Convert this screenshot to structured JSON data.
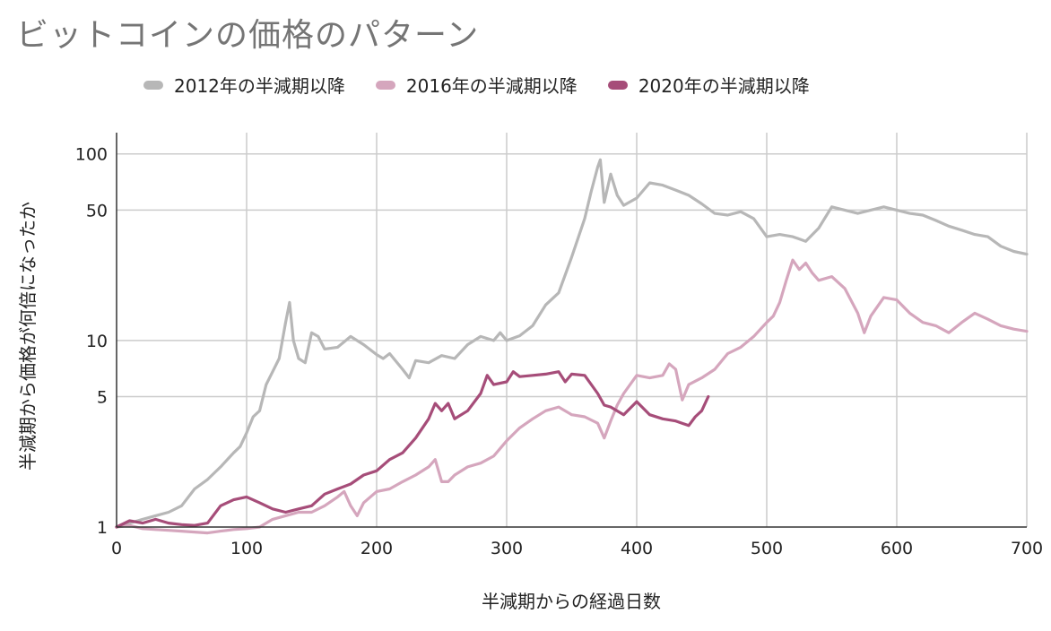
{
  "chart_data": {
    "type": "line",
    "title": "ビットコインの価格のパターン",
    "xlabel": "半減期からの経過日数",
    "ylabel": "半減期から価格が何倍になったか",
    "xlim": [
      0,
      700
    ],
    "ylim": [
      1,
      130
    ],
    "yscale": "log",
    "grid": true,
    "legend_position": "top",
    "x_ticks": [
      0,
      100,
      200,
      300,
      400,
      500,
      600,
      700
    ],
    "y_ticks": [
      1,
      5,
      10,
      50,
      100
    ],
    "series": [
      {
        "name": "2012年の半減期以降",
        "color": "#b7b7b7",
        "x": [
          0,
          10,
          20,
          30,
          40,
          50,
          60,
          70,
          80,
          90,
          95,
          100,
          105,
          110,
          115,
          120,
          125,
          130,
          133,
          136,
          140,
          145,
          150,
          155,
          160,
          170,
          180,
          190,
          200,
          205,
          210,
          220,
          225,
          230,
          240,
          250,
          260,
          270,
          280,
          290,
          295,
          300,
          310,
          320,
          330,
          340,
          350,
          360,
          365,
          370,
          372,
          375,
          380,
          385,
          390,
          400,
          410,
          420,
          430,
          440,
          450,
          460,
          470,
          480,
          490,
          500,
          510,
          520,
          530,
          540,
          550,
          560,
          570,
          580,
          590,
          600,
          610,
          620,
          630,
          640,
          650,
          660,
          670,
          680,
          690,
          700
        ],
        "values": [
          1.0,
          1.05,
          1.1,
          1.15,
          1.2,
          1.3,
          1.6,
          1.8,
          2.1,
          2.5,
          2.7,
          3.2,
          3.9,
          4.2,
          5.8,
          6.8,
          8.0,
          12.5,
          16.0,
          10.0,
          8.0,
          7.6,
          11.0,
          10.5,
          9.0,
          9.2,
          10.5,
          9.5,
          8.4,
          8.0,
          8.5,
          7.0,
          6.3,
          7.8,
          7.6,
          8.3,
          8.0,
          9.5,
          10.5,
          10.0,
          11.0,
          10.0,
          10.6,
          12.0,
          15.5,
          18.0,
          28.0,
          45.0,
          63.0,
          85.0,
          93.0,
          55.0,
          78.0,
          60.0,
          53.0,
          58.0,
          70.0,
          68.0,
          64.0,
          60.0,
          54.0,
          48.0,
          47.0,
          49.0,
          45.0,
          36.0,
          37.0,
          36.0,
          34.0,
          40.0,
          52.0,
          50.0,
          48.0,
          50.0,
          52.0,
          50.0,
          48.0,
          47.0,
          44.0,
          41.0,
          39.0,
          37.0,
          36.0,
          32.0,
          30.0,
          29.0
        ]
      },
      {
        "name": "2016年の半減期以降",
        "color": "#d5a6bd",
        "x": [
          0,
          10,
          20,
          30,
          40,
          50,
          60,
          70,
          80,
          90,
          100,
          110,
          120,
          130,
          140,
          150,
          160,
          170,
          175,
          180,
          185,
          190,
          200,
          210,
          220,
          230,
          240,
          245,
          250,
          255,
          260,
          270,
          280,
          290,
          300,
          310,
          320,
          330,
          340,
          350,
          360,
          370,
          375,
          380,
          385,
          390,
          400,
          410,
          420,
          425,
          430,
          435,
          440,
          450,
          460,
          470,
          480,
          490,
          500,
          505,
          510,
          515,
          520,
          525,
          530,
          535,
          540,
          550,
          560,
          570,
          575,
          580,
          590,
          600,
          610,
          620,
          630,
          640,
          650,
          660,
          670,
          680,
          690,
          700
        ],
        "values": [
          1.0,
          1.02,
          0.98,
          0.97,
          0.96,
          0.95,
          0.94,
          0.93,
          0.95,
          0.97,
          0.98,
          1.0,
          1.1,
          1.15,
          1.2,
          1.2,
          1.3,
          1.45,
          1.55,
          1.3,
          1.15,
          1.35,
          1.55,
          1.6,
          1.75,
          1.9,
          2.1,
          2.3,
          1.75,
          1.75,
          1.9,
          2.1,
          2.2,
          2.4,
          2.9,
          3.4,
          3.8,
          4.2,
          4.4,
          4.0,
          3.9,
          3.6,
          3.0,
          3.7,
          4.5,
          5.2,
          6.5,
          6.3,
          6.5,
          7.5,
          7.0,
          4.8,
          5.8,
          6.3,
          7.0,
          8.5,
          9.2,
          10.5,
          12.5,
          13.5,
          16.0,
          21.0,
          27.0,
          24.0,
          26.0,
          23.0,
          21.0,
          22.0,
          19.0,
          14.0,
          11.0,
          13.5,
          17.0,
          16.5,
          14.0,
          12.5,
          12.0,
          11.0,
          12.5,
          14.0,
          13.0,
          12.0,
          11.5,
          11.2
        ]
      },
      {
        "name": "2020年の半減期以降",
        "color": "#a64d79",
        "x": [
          0,
          10,
          20,
          30,
          40,
          50,
          60,
          70,
          80,
          90,
          100,
          110,
          120,
          130,
          140,
          150,
          160,
          170,
          180,
          190,
          200,
          210,
          220,
          230,
          240,
          245,
          250,
          255,
          260,
          270,
          280,
          285,
          290,
          300,
          305,
          310,
          320,
          330,
          340,
          345,
          350,
          360,
          370,
          375,
          380,
          390,
          400,
          410,
          420,
          430,
          440,
          445,
          450,
          455
        ],
        "values": [
          1.0,
          1.08,
          1.05,
          1.1,
          1.05,
          1.03,
          1.02,
          1.05,
          1.3,
          1.4,
          1.45,
          1.35,
          1.25,
          1.2,
          1.25,
          1.3,
          1.5,
          1.6,
          1.7,
          1.9,
          2.0,
          2.3,
          2.5,
          3.0,
          3.8,
          4.6,
          4.2,
          4.6,
          3.8,
          4.2,
          5.2,
          6.5,
          5.8,
          6.0,
          6.8,
          6.4,
          6.5,
          6.6,
          6.8,
          6.0,
          6.6,
          6.5,
          5.2,
          4.5,
          4.4,
          4.0,
          4.7,
          4.0,
          3.8,
          3.7,
          3.5,
          3.9,
          4.2,
          5.0
        ]
      }
    ]
  }
}
